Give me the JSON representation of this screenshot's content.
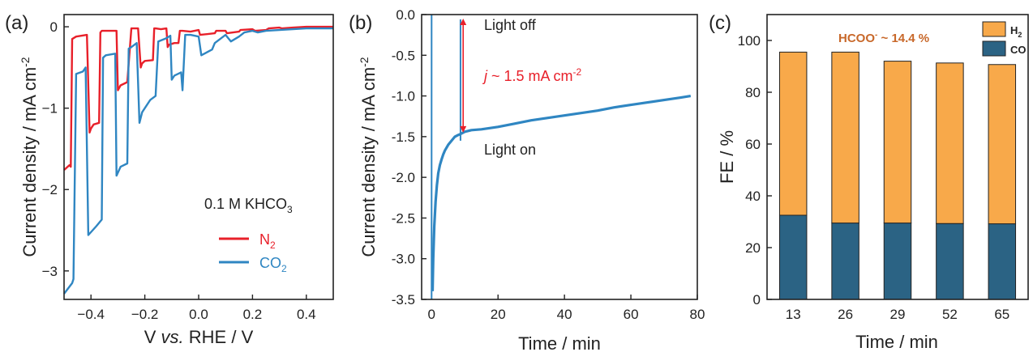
{
  "colors": {
    "n2": "#e8202a",
    "co2": "#2f86c2",
    "h2_bar": "#f8a94a",
    "co_bar": "#2b6384",
    "annot_red": "#e8202a",
    "annot_orange": "#c8682a",
    "axis": "#222222"
  },
  "chart_data": [
    {
      "panel_label": "(a)",
      "type": "line",
      "xlabel_parts": [
        "V ",
        "vs.",
        " RHE / V"
      ],
      "ylabel": "Current density / mA cm",
      "ylabel_sup": "-2",
      "xlim": [
        -0.5,
        0.5
      ],
      "ylim": [
        -3.35,
        0.15
      ],
      "xticks": [
        -0.4,
        -0.2,
        0.0,
        0.2,
        0.4
      ],
      "xtick_labels": [
        "−0.4",
        "−0.2",
        "0.0",
        "0.2",
        "0.4"
      ],
      "yticks": [
        0,
        -1,
        -2,
        -3
      ],
      "ytick_labels": [
        "0",
        "−1",
        "−2",
        "−3"
      ],
      "annotation": {
        "text": "0.1 M KHCO",
        "sub": "3"
      },
      "legend_position": "lower-right",
      "series": [
        {
          "name": "N",
          "name_sub": "2",
          "color_key": "n2",
          "x": [
            -0.5,
            -0.48,
            -0.475,
            -0.47,
            -0.455,
            -0.415,
            -0.405,
            -0.4,
            -0.39,
            -0.37,
            -0.365,
            -0.36,
            -0.34,
            -0.305,
            -0.3,
            -0.29,
            -0.265,
            -0.25,
            -0.24,
            -0.225,
            -0.215,
            -0.21,
            -0.2,
            -0.17,
            -0.165,
            -0.16,
            -0.14,
            -0.12,
            -0.115,
            -0.11,
            -0.09,
            -0.075,
            -0.07,
            -0.06,
            -0.03,
            0.0,
            0.005,
            0.06,
            0.065,
            0.1,
            0.105,
            0.15,
            0.155,
            0.2,
            0.21,
            0.25,
            0.26,
            0.3,
            0.31,
            0.35,
            0.4,
            0.45,
            0.5
          ],
          "y": [
            -1.76,
            -1.7,
            -1.72,
            -0.15,
            -0.12,
            -0.1,
            -1.3,
            -1.25,
            -1.2,
            -1.18,
            -0.07,
            -0.05,
            -0.05,
            -0.05,
            -0.78,
            -0.72,
            -0.68,
            -0.02,
            -0.02,
            -0.02,
            -0.5,
            -0.45,
            -0.42,
            -0.41,
            -0.02,
            -0.02,
            -0.03,
            -0.02,
            -0.25,
            -0.22,
            -0.2,
            -0.2,
            -0.05,
            -0.05,
            -0.06,
            -0.04,
            -0.1,
            -0.08,
            -0.05,
            -0.05,
            -0.08,
            -0.06,
            -0.04,
            -0.03,
            -0.05,
            -0.04,
            -0.02,
            -0.01,
            -0.02,
            -0.01,
            0.0,
            0.0,
            0.0
          ]
        },
        {
          "name": "CO",
          "name_sub": "2",
          "color_key": "co2",
          "x": [
            -0.5,
            -0.47,
            -0.465,
            -0.455,
            -0.43,
            -0.42,
            -0.41,
            -0.38,
            -0.36,
            -0.355,
            -0.345,
            -0.31,
            -0.305,
            -0.29,
            -0.265,
            -0.26,
            -0.25,
            -0.23,
            -0.22,
            -0.21,
            -0.18,
            -0.16,
            -0.15,
            -0.12,
            -0.105,
            -0.1,
            -0.09,
            -0.065,
            -0.06,
            -0.05,
            -0.03,
            0.0,
            0.01,
            0.05,
            0.06,
            0.1,
            0.12,
            0.15,
            0.17,
            0.2,
            0.22,
            0.25,
            0.3,
            0.35,
            0.4,
            0.45,
            0.5
          ],
          "y": [
            -3.28,
            -3.15,
            -3.1,
            -0.58,
            -0.55,
            -0.5,
            -2.56,
            -2.45,
            -2.37,
            -0.38,
            -0.35,
            -0.33,
            -1.83,
            -1.72,
            -1.68,
            -0.27,
            -0.25,
            -0.2,
            -1.18,
            -1.05,
            -0.9,
            -0.85,
            -0.18,
            -0.14,
            -0.11,
            -0.65,
            -0.6,
            -0.56,
            -0.78,
            -0.1,
            -0.1,
            -0.12,
            -0.35,
            -0.28,
            -0.2,
            -0.1,
            -0.18,
            -0.12,
            -0.07,
            -0.05,
            -0.07,
            -0.05,
            -0.04,
            -0.03,
            -0.02,
            -0.02,
            -0.02
          ]
        }
      ]
    },
    {
      "panel_label": "(b)",
      "type": "line",
      "xlabel": "Time / min",
      "ylabel": "Current density / mA cm",
      "ylabel_sup": "-2",
      "xlim": [
        -3,
        80
      ],
      "ylim": [
        -3.5,
        0.0
      ],
      "xticks": [
        0,
        20,
        40,
        60,
        80
      ],
      "xtick_labels": [
        "0",
        "20",
        "40",
        "60",
        "80"
      ],
      "yticks": [
        0.0,
        -0.5,
        -1.0,
        -1.5,
        -2.0,
        -2.5,
        -3.0,
        -3.5
      ],
      "ytick_labels": [
        "0.0",
        "-0.5",
        "-1.0",
        "-1.5",
        "-2.0",
        "-2.5",
        "-3.0",
        "-3.5"
      ],
      "annotations": {
        "light_off": "Light off",
        "light_on": "Light on",
        "j_italic": "j",
        "j_text": " ~ 1.5 mA cm",
        "j_sup": "-2"
      },
      "arrow_x": 9.5,
      "arrow_y": [
        -0.05,
        -1.45
      ],
      "spikes": [
        {
          "x": 0.0,
          "y_from": -3.5,
          "y_to": 0.0
        },
        {
          "x": 8.7,
          "y_from": -1.55,
          "y_to": -0.06
        }
      ],
      "series": [
        {
          "color_key": "co2",
          "x": [
            0.3,
            0.5,
            0.8,
            1.2,
            1.6,
            2.0,
            2.5,
            3.0,
            3.5,
            4.0,
            5.0,
            6.0,
            7.0,
            8.0,
            8.6,
            10,
            12,
            15,
            20,
            25,
            30,
            35,
            40,
            45,
            50,
            55,
            60,
            65,
            70,
            75,
            78
          ],
          "y": [
            -3.4,
            -3.0,
            -2.6,
            -2.3,
            -2.1,
            -1.95,
            -1.85,
            -1.78,
            -1.72,
            -1.67,
            -1.6,
            -1.55,
            -1.5,
            -1.48,
            -1.47,
            -1.44,
            -1.42,
            -1.41,
            -1.38,
            -1.34,
            -1.3,
            -1.27,
            -1.24,
            -1.21,
            -1.18,
            -1.14,
            -1.11,
            -1.08,
            -1.05,
            -1.02,
            -1.0
          ]
        }
      ]
    },
    {
      "panel_label": "(c)",
      "type": "bar",
      "xlabel": "Time / min",
      "ylabel": "FE / %",
      "ylim": [
        0,
        110
      ],
      "yticks": [
        0,
        20,
        40,
        60,
        80,
        100
      ],
      "ytick_labels": [
        "0",
        "20",
        "40",
        "60",
        "80",
        "100"
      ],
      "categories": [
        "13",
        "26",
        "29",
        "52",
        "65"
      ],
      "annotation": {
        "text": "HCOO",
        "sup": "-",
        "rest": " ~ 14.4 %"
      },
      "legend_position": "top-right",
      "series": [
        {
          "name": "CO",
          "color_key": "co_bar",
          "values": [
            32.5,
            29.5,
            29.5,
            29.3,
            29.2
          ]
        },
        {
          "name": "H",
          "name_sub": "2",
          "color_key": "h2_bar",
          "values": [
            63.0,
            66.0,
            62.5,
            62.0,
            61.5
          ]
        }
      ]
    }
  ]
}
